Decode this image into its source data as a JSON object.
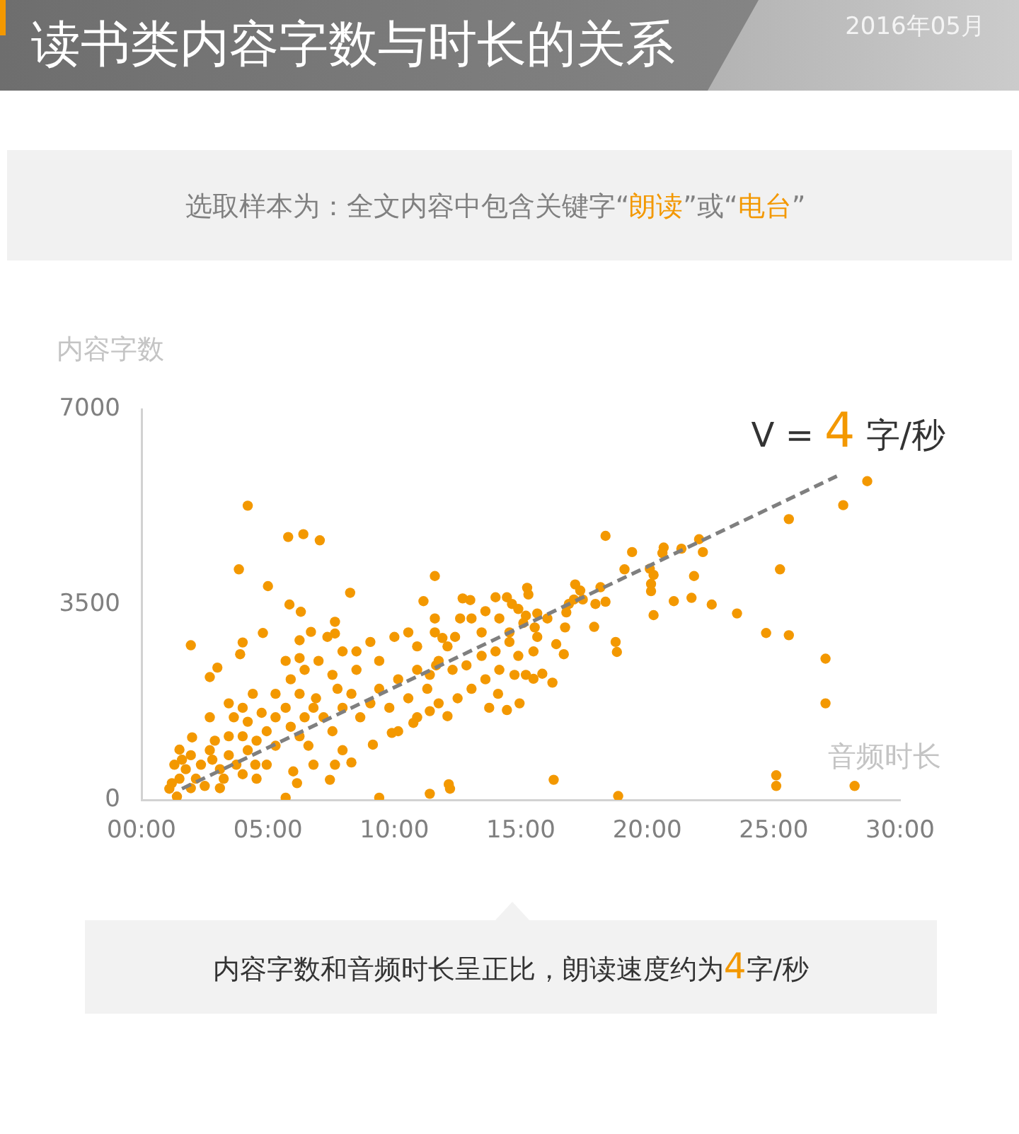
{
  "chart_data": {
    "type": "scatter",
    "title": "读书类内容字数与时长的关系",
    "subtitle": "选取样本为：全文内容中包含关键字“朗读”或“电台”",
    "xlabel": "音频时长",
    "ylabel": "内容字数",
    "xlim": [
      0,
      30
    ],
    "xticks": [
      {
        "value": 0,
        "label": "00:00"
      },
      {
        "value": 5,
        "label": "05:00"
      },
      {
        "value": 10,
        "label": "10:00"
      },
      {
        "value": 15,
        "label": "15:00"
      },
      {
        "value": 20,
        "label": "20:00"
      },
      {
        "value": 25,
        "label": "25:00"
      },
      {
        "value": 30,
        "label": "30:00"
      }
    ],
    "ylim": [
      0,
      7000
    ],
    "yticks": [
      0,
      3500,
      7000
    ],
    "grid": false,
    "legend": false,
    "series": [
      {
        "color": "#f39800",
        "marker": "circle",
        "x": [
          4.2,
          5.8,
          6.4,
          7.05,
          3.85,
          5.0,
          8.25,
          11.6,
          5.85,
          6.3,
          11.15,
          7.65,
          7.65,
          6.7,
          4.8,
          4.0,
          1.95,
          6.25,
          3.0,
          2.7,
          3.9,
          2.0,
          1.5,
          1.1,
          1.4,
          5.7,
          9.4,
          11.4,
          6.15,
          7.45,
          6.0,
          7.65,
          8.3,
          9.15,
          10.75,
          9.9,
          18.35,
          19.4,
          20.65,
          20.6,
          21.35,
          22.05,
          22.2,
          19.1,
          20.1,
          20.25,
          21.85,
          20.15,
          20.15,
          21.05,
          21.75,
          22.55,
          20.25,
          17.9,
          18.35,
          18.15,
          17.15,
          17.35,
          18.75,
          18.8,
          16.75,
          16.4,
          16.7,
          15.25,
          15.3,
          14.0,
          14.45,
          12.7,
          13.0,
          16.9,
          17.45,
          16.25,
          15.85,
          14.95,
          14.45,
          13.75,
          12.1,
          11.4,
          14.1,
          15.5,
          15.2,
          12.15,
          12.2,
          16.3,
          18.85,
          28.7,
          27.75,
          25.6,
          25.25,
          23.55,
          24.7,
          25.6,
          27.05,
          27.05,
          25.1,
          25.1,
          28.2,
          1.6,
          1.75,
          2.15,
          2.5,
          2.35,
          2.8,
          3.1,
          3.45,
          3.25,
          3.75,
          4.0,
          4.2,
          4.5,
          4.55,
          4.95,
          5.3,
          4.0,
          3.45,
          2.9,
          3.65,
          4.2,
          4.75,
          5.3,
          5.7,
          5.9,
          6.25,
          6.6,
          6.45,
          6.8,
          6.9,
          7.2,
          7.55,
          7.95,
          7.75,
          8.3,
          8.65,
          9.05,
          9.4,
          9.8,
          10.15,
          10.55,
          10.9,
          11.3,
          11.65,
          6.25,
          5.9,
          6.45,
          7.0,
          7.55,
          7.95,
          8.5,
          9.05,
          9.4,
          10.0,
          10.55,
          10.9,
          5.3,
          5.7,
          6.25,
          4.4,
          4.0,
          3.45,
          2.7,
          7.35,
          8.5,
          2.7,
          1.95,
          1.3,
          1.5,
          1.2,
          1.95,
          3.1,
          4.55,
          4.95,
          6.8,
          7.95,
          10.15,
          10.9,
          11.6,
          12.1,
          11.75,
          12.3,
          11.4,
          12.85,
          13.45,
          14.0,
          14.55,
          14.9,
          14.15,
          13.6,
          13.05,
          12.5,
          11.75,
          15.65,
          15.5,
          14.75,
          11.6,
          11.9,
          12.6,
          13.05,
          13.6,
          14.65,
          14.15,
          14.9,
          15.2,
          15.65,
          15.55,
          16.05,
          13.45,
          12.4,
          14.55,
          15.1,
          16.8,
          17.1,
          17.95
        ],
        "values": [
          5270,
          4710,
          4760,
          4650,
          4130,
          3830,
          3710,
          4010,
          3500,
          3370,
          3560,
          3190,
          2980,
          3010,
          2990,
          2820,
          2770,
          2860,
          2370,
          2200,
          2610,
          1120,
          900,
          200,
          60,
          40,
          40,
          110,
          300,
          360,
          510,
          630,
          670,
          990,
          1380,
          1200,
          4730,
          4440,
          4520,
          4420,
          4500,
          4670,
          4440,
          4130,
          4140,
          4030,
          4010,
          3870,
          3740,
          3560,
          3620,
          3500,
          3310,
          3100,
          3550,
          3810,
          3860,
          3750,
          2830,
          2650,
          3090,
          2790,
          2610,
          3800,
          3680,
          3630,
          3630,
          3610,
          3580,
          3510,
          3590,
          2100,
          2260,
          1730,
          1610,
          1650,
          1500,
          1590,
          1900,
          2170,
          2240,
          280,
          200,
          360,
          70,
          5710,
          5280,
          5030,
          4130,
          3340,
          2990,
          2950,
          2530,
          1730,
          440,
          250,
          250,
          720,
          550,
          380,
          250,
          630,
          720,
          550,
          800,
          380,
          630,
          460,
          890,
          630,
          1060,
          1230,
          970,
          1140,
          1140,
          1060,
          1480,
          1400,
          1560,
          1480,
          1650,
          1310,
          1140,
          970,
          1480,
          1650,
          1820,
          1480,
          1230,
          1650,
          1990,
          1900,
          1480,
          1730,
          1990,
          1650,
          2160,
          1820,
          2330,
          1990,
          2410,
          1900,
          2160,
          2330,
          2490,
          2240,
          2660,
          2660,
          2830,
          2490,
          2920,
          3000,
          2750,
          1900,
          2490,
          2540,
          1900,
          1650,
          1730,
          1480,
          2920,
          2330,
          890,
          800,
          630,
          380,
          300,
          210,
          210,
          380,
          630,
          630,
          890,
          1230,
          1480,
          3000,
          2750,
          2490,
          2330,
          2240,
          2410,
          2580,
          2660,
          2830,
          2580,
          2330,
          2160,
          1990,
          1820,
          1730,
          2920,
          2660,
          2240,
          3250,
          2900,
          3250,
          3250,
          3380,
          3510,
          3250,
          3420,
          3300,
          3340,
          3090,
          3250,
          3000,
          2920,
          3000,
          3170,
          3360,
          3590,
          3510
        ]
      },
      {
        "type": "line",
        "color": "#7f7f7f",
        "line_style": "dashed",
        "x": [
          1.6,
          27.5
        ],
        "values": [
          200,
          5800
        ]
      }
    ],
    "annotations": [
      "2016年05月",
      {
        "text": "V = 4 字/秒",
        "x": 27.5,
        "y": 5800
      },
      "内容字数和音频时长呈正比，朗读速度约为4字/秒"
    ]
  }
}
